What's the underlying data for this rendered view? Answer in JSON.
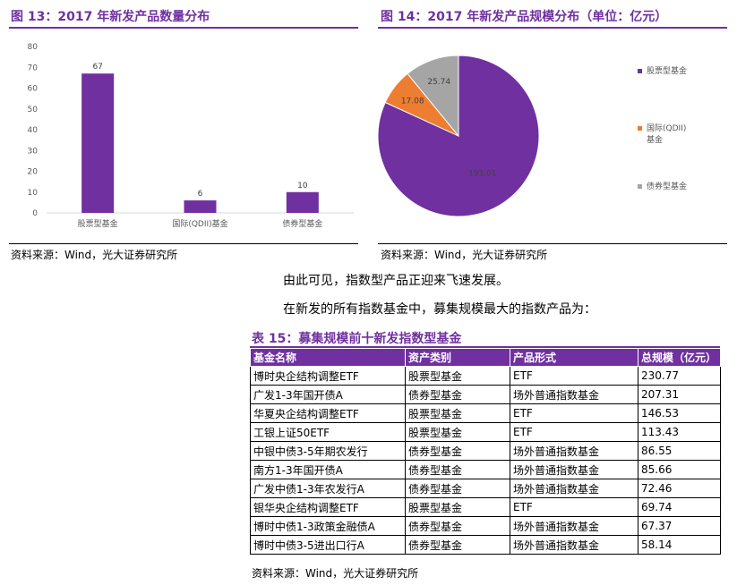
{
  "fig13": {
    "title": "图 13：2017 年新发产品数量分布",
    "source": "资料来源：Wind，光大证券研究所"
  },
  "fig14": {
    "title": "图 14：2017 年新发产品规模分布（单位：亿元）",
    "source": "资料来源：Wind，光大证券研究所"
  },
  "paragraphs": [
    "由此可见，指数型产品正迎来飞速发展。",
    "在新发的所有指数基金中，募集规模最大的指数产品为："
  ],
  "table": {
    "title": "表 15：募集规模前十新发指数型基金",
    "headers": [
      "基金名称",
      "资产类别",
      "产品形式",
      "总规模（亿元）"
    ],
    "rows": [
      [
        "博时央企结构调整ETF",
        "股票型基金",
        "ETF",
        "230.77"
      ],
      [
        "广发1-3年国开债A",
        "债券型基金",
        "场外普通指数基金",
        "207.31"
      ],
      [
        "华夏央企结构调整ETF",
        "股票型基金",
        "ETF",
        "146.53"
      ],
      [
        "工银上证50ETF",
        "股票型基金",
        "ETF",
        "113.43"
      ],
      [
        "中银中债3-5年期农发行",
        "债券型基金",
        "场外普通指数基金",
        "86.55"
      ],
      [
        "南方1-3年国开债A",
        "债券型基金",
        "场外普通指数基金",
        "85.66"
      ],
      [
        "广发中债1-3年农发行A",
        "债券型基金",
        "场外普通指数基金",
        "72.46"
      ],
      [
        "银华央企结构调整ETF",
        "股票型基金",
        "ETF",
        "69.74"
      ],
      [
        "博时中债1-3政策金融债A",
        "债券型基金",
        "场外普通指数基金",
        "67.37"
      ],
      [
        "博时中债3-5进出口行A",
        "债券型基金",
        "场外普通指数基金",
        "58.14"
      ]
    ],
    "source": "资料来源：Wind，光大证券研究所"
  },
  "chart_data": [
    {
      "type": "bar",
      "categories": [
        "股票型基金",
        "国际(QDII)基金",
        "债券型基金"
      ],
      "values": [
        67,
        6,
        10
      ],
      "ylim": [
        0,
        80
      ],
      "yticks": [
        0,
        10,
        20,
        30,
        40,
        50,
        60,
        70,
        80
      ],
      "grid": false,
      "color": "#7030a0"
    },
    {
      "type": "pie",
      "labels": [
        "股票型基金",
        "国际(QDII)基金",
        "债券型基金"
      ],
      "values": [
        193.01,
        17.08,
        25.74
      ],
      "colors": [
        "#7030a0",
        "#ed7d31",
        "#a5a5a5"
      ],
      "legend": "right"
    }
  ]
}
